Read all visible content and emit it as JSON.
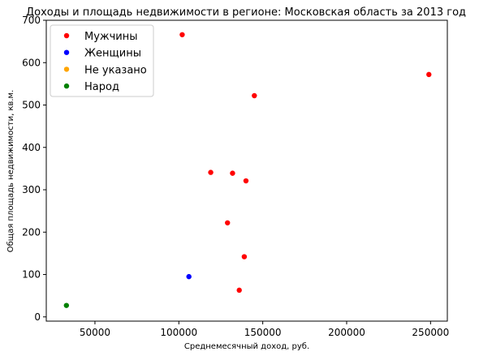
{
  "chart_data": {
    "type": "scatter",
    "title": "Доходы и площадь недвижимости в регионе: Московская область за 2013 год",
    "xlabel": "Среднемесячный доход, руб.",
    "ylabel": "Общая площадь недвижимости, кв.м.",
    "xlim": [
      21000,
      260000
    ],
    "ylim": [
      -10,
      700
    ],
    "xticks": [
      50000,
      100000,
      150000,
      200000,
      250000
    ],
    "yticks": [
      0,
      100,
      200,
      300,
      400,
      500,
      600,
      700
    ],
    "grid": false,
    "legend_position": "upper-left",
    "series": [
      {
        "name": "Мужчины",
        "color": "#ff0000",
        "points": [
          {
            "x": 102000,
            "y": 666
          },
          {
            "x": 249000,
            "y": 572
          },
          {
            "x": 145000,
            "y": 522
          },
          {
            "x": 119000,
            "y": 341
          },
          {
            "x": 132000,
            "y": 339
          },
          {
            "x": 140000,
            "y": 321
          },
          {
            "x": 129000,
            "y": 222
          },
          {
            "x": 139000,
            "y": 142
          },
          {
            "x": 136000,
            "y": 63
          }
        ]
      },
      {
        "name": "Женщины",
        "color": "#0000ff",
        "points": [
          {
            "x": 106000,
            "y": 95
          }
        ]
      },
      {
        "name": "Не указано",
        "color": "#ffa500",
        "points": []
      },
      {
        "name": "Народ",
        "color": "#008000",
        "points": [
          {
            "x": 33000,
            "y": 27
          }
        ]
      }
    ]
  }
}
